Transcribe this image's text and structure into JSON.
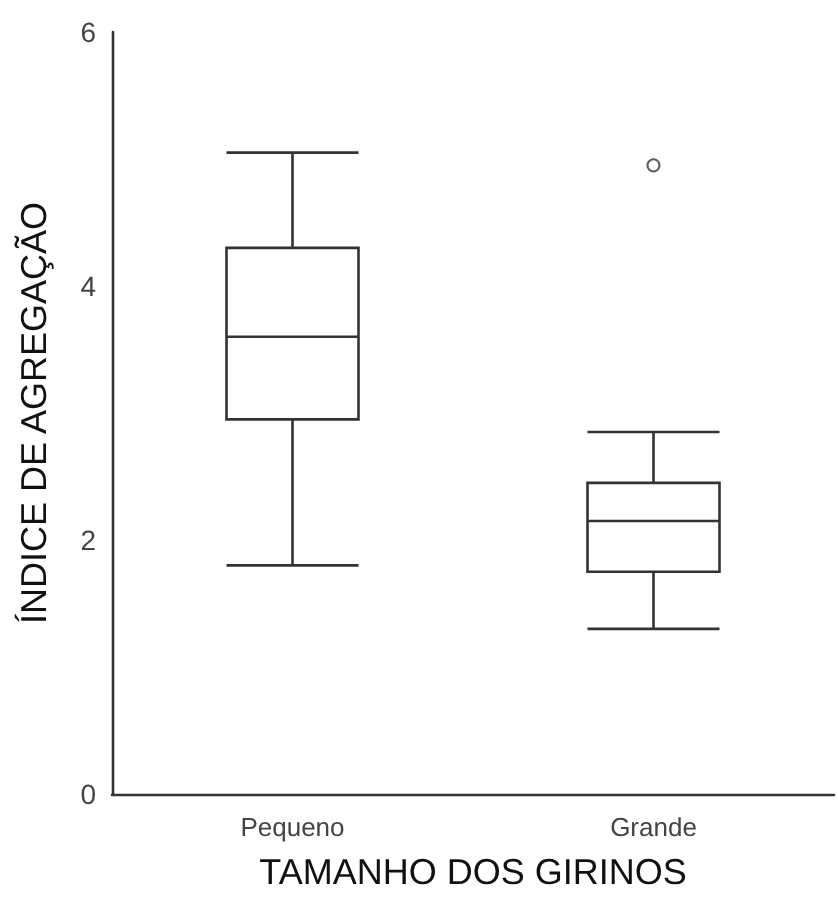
{
  "chart_data": {
    "type": "box",
    "xlabel": "TAMANHO DOS GIRINOS",
    "ylabel": "ÍNDICE DE AGREGAÇÃO",
    "categories": [
      "Pequeno",
      "Grande"
    ],
    "boxes": [
      {
        "low": 1.8,
        "q1": 2.95,
        "median": 3.6,
        "q3": 4.3,
        "high": 5.05
      },
      {
        "low": 1.3,
        "q1": 1.75,
        "median": 2.15,
        "q3": 2.45,
        "high": 2.85,
        "outliers": [
          4.95
        ]
      }
    ],
    "color": "#333333",
    "ylim": [
      0,
      6
    ],
    "yticks": [
      0,
      2,
      4,
      6
    ],
    "grid": false,
    "marker": "circle"
  }
}
